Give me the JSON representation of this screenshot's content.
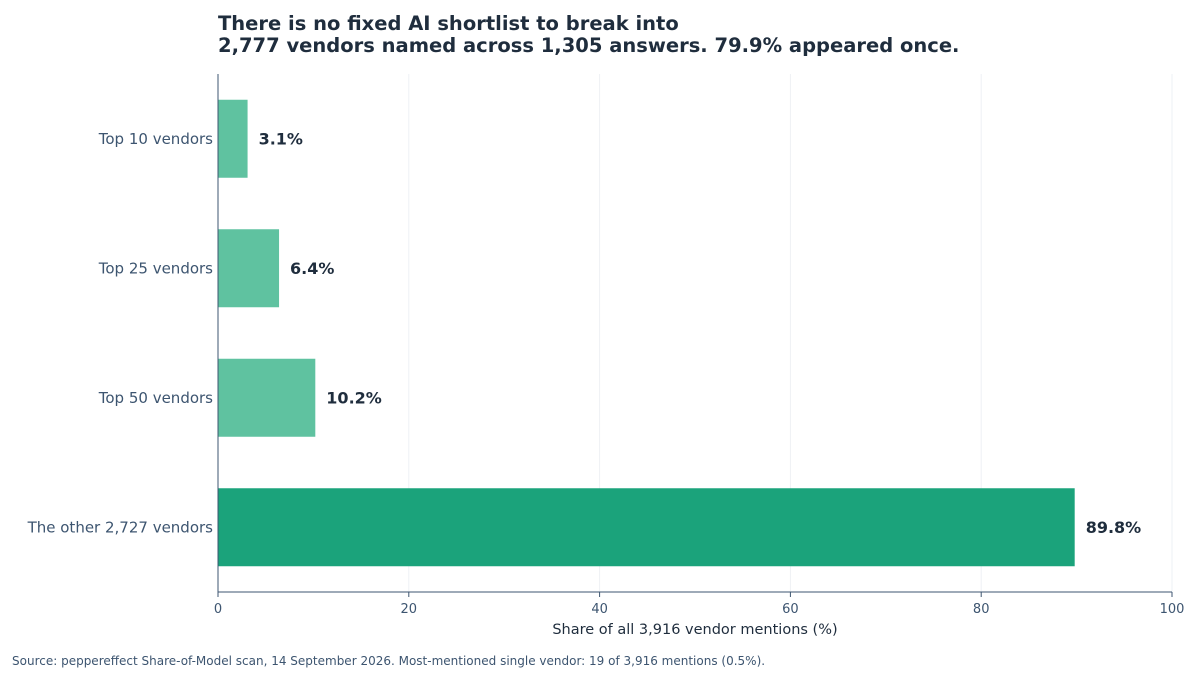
{
  "title": "There is no fixed AI shortlist to break into",
  "subtitle": "2,777 vendors named across 1,305 answers. 79.9% appeared once.",
  "source": "Source: peppereffect Share-of-Model scan, 14 September 2026. Most-mentioned single vendor: 19 of 3,916 mentions (0.5%).",
  "colors": {
    "bar_light": "#5fc2a0",
    "bar_dark": "#1ba37b",
    "text_dark": "#1f2d3d",
    "tick_text": "#3d5570",
    "axis": "#3d5570",
    "grid": "#eef1f4"
  },
  "chart_data": {
    "type": "bar",
    "orientation": "horizontal",
    "categories": [
      "Top 10 vendors",
      "Top 25 vendors",
      "Top 50 vendors",
      "The other 2,727 vendors"
    ],
    "values": [
      3.1,
      6.4,
      10.2,
      89.8
    ],
    "value_labels": [
      "3.1%",
      "6.4%",
      "10.2%",
      "89.8%"
    ],
    "highlight": [
      false,
      false,
      false,
      true
    ],
    "xlabel": "Share of all 3,916 vendor mentions (%)",
    "ylabel": "",
    "xlim": [
      0,
      100
    ],
    "xticks": [
      0,
      20,
      40,
      60,
      80,
      100
    ],
    "grid": "vertical"
  }
}
